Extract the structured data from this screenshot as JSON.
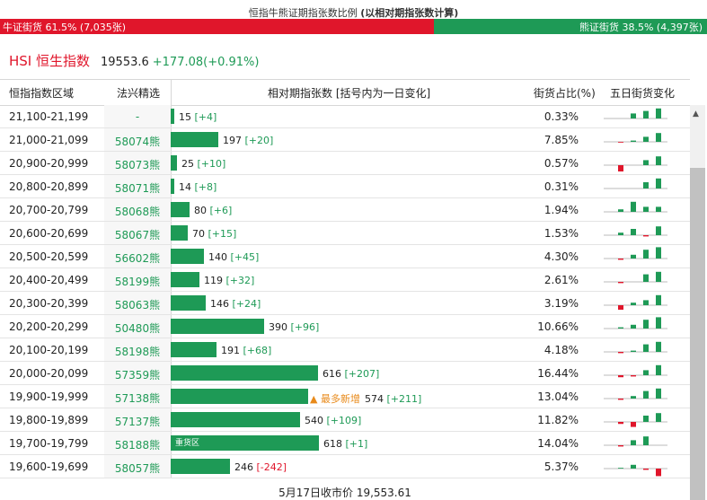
{
  "header": {
    "title_main": "恒指牛熊证期指张数比例",
    "title_note": "(以相对期指张数计算)"
  },
  "ratio": {
    "bull_label": "牛证街货 61.5% (7,035张)",
    "bear_label": "熊证街货 38.5% (4,397张)",
    "bull_share": 0.615,
    "bull_color": "#e0162b",
    "bear_color": "#1e9a56"
  },
  "index": {
    "name": "HSI 恒生指数",
    "price": "19553.6",
    "change": "+177.08(+0.91%)"
  },
  "table": {
    "headers": {
      "range": "恒指指数区域",
      "pick": "法兴精选",
      "count": "相对期指张数 [括号内为一日变化]",
      "share": "街货占比(%)",
      "trend": "五日街货变化"
    },
    "max_count": 618,
    "rows": [
      {
        "range": "21,100-21,199",
        "code": "-",
        "count": "15",
        "delta": "[+4]",
        "delta_dir": "pos",
        "value": 15,
        "share": "0.33%",
        "label": "",
        "trend": [
          0,
          0,
          2,
          3,
          4
        ]
      },
      {
        "range": "21,000-21,099",
        "code": "58074熊",
        "count": "197",
        "delta": "[+20]",
        "delta_dir": "pos",
        "value": 197,
        "share": "7.85%",
        "label": "",
        "trend": [
          0,
          -0.3,
          0.5,
          2,
          3.5
        ]
      },
      {
        "range": "20,900-20,999",
        "code": "58073熊",
        "count": "25",
        "delta": "[+10]",
        "delta_dir": "pos",
        "value": 25,
        "share": "0.57%",
        "label": "",
        "trend": [
          0,
          -2.5,
          0,
          2,
          3.5
        ]
      },
      {
        "range": "20,800-20,899",
        "code": "58071熊",
        "count": "14",
        "delta": "[+8]",
        "delta_dir": "pos",
        "value": 14,
        "share": "0.31%",
        "label": "",
        "trend": [
          0,
          0,
          0,
          2.5,
          4
        ]
      },
      {
        "range": "20,700-20,799",
        "code": "58068熊",
        "count": "80",
        "delta": "[+6]",
        "delta_dir": "pos",
        "value": 80,
        "share": "1.94%",
        "label": "",
        "trend": [
          0,
          1,
          4,
          2,
          2
        ]
      },
      {
        "range": "20,600-20,699",
        "code": "58067熊",
        "count": "70",
        "delta": "[+15]",
        "delta_dir": "pos",
        "value": 70,
        "share": "1.53%",
        "label": "",
        "trend": [
          0,
          1,
          2.5,
          -0.5,
          3.5
        ]
      },
      {
        "range": "20,500-20,599",
        "code": "56602熊",
        "count": "140",
        "delta": "[+45]",
        "delta_dir": "pos",
        "value": 140,
        "share": "4.30%",
        "label": "",
        "trend": [
          0,
          -0.5,
          1.5,
          3.5,
          4.5
        ]
      },
      {
        "range": "20,400-20,499",
        "code": "58199熊",
        "count": "119",
        "delta": "[+32]",
        "delta_dir": "pos",
        "value": 119,
        "share": "2.61%",
        "label": "",
        "trend": [
          0,
          -0.5,
          0,
          3,
          4
        ]
      },
      {
        "range": "20,300-20,399",
        "code": "58063熊",
        "count": "146",
        "delta": "[+24]",
        "delta_dir": "pos",
        "value": 146,
        "share": "3.19%",
        "label": "",
        "trend": [
          0,
          -1.8,
          1,
          2,
          4
        ]
      },
      {
        "range": "20,200-20,299",
        "code": "50480熊",
        "count": "390",
        "delta": "[+96]",
        "delta_dir": "pos",
        "value": 390,
        "share": "10.66%",
        "label": "",
        "trend": [
          0,
          0.5,
          1.5,
          3.5,
          4.5
        ]
      },
      {
        "range": "20,100-20,199",
        "code": "58198熊",
        "count": "191",
        "delta": "[+68]",
        "delta_dir": "pos",
        "value": 191,
        "share": "4.18%",
        "label": "",
        "trend": [
          0,
          -0.5,
          0.5,
          3,
          4
        ]
      },
      {
        "range": "20,000-20,099",
        "code": "57359熊",
        "count": "616",
        "delta": "[+207]",
        "delta_dir": "pos",
        "value": 616,
        "share": "16.44%",
        "label": "",
        "trend": [
          0,
          -0.8,
          -0.5,
          2,
          4
        ]
      },
      {
        "range": "19,900-19,999",
        "code": "57138熊",
        "count": "574",
        "delta": "[+211]",
        "delta_dir": "pos",
        "value": 574,
        "share": "13.04%",
        "label": "▲ 最多新增",
        "trend": [
          0,
          -0.5,
          1,
          3,
          4
        ]
      },
      {
        "range": "19,800-19,899",
        "code": "57137熊",
        "count": "540",
        "delta": "[+109]",
        "delta_dir": "pos",
        "value": 540,
        "share": "11.82%",
        "label": "",
        "trend": [
          0,
          -0.8,
          -2,
          2.5,
          3.5
        ]
      },
      {
        "range": "19,700-19,799",
        "code": "58188熊",
        "count": "618",
        "delta": "[+1]",
        "delta_dir": "pos",
        "value": 618,
        "share": "14.04%",
        "label": "重货区",
        "trend": [
          0,
          -0.5,
          2,
          3.5,
          0
        ]
      },
      {
        "range": "19,600-19,699",
        "code": "58057熊",
        "count": "246",
        "delta": "[-242]",
        "delta_dir": "neg",
        "value": 246,
        "share": "5.37%",
        "label": "",
        "trend": [
          0,
          0.3,
          1.5,
          -0.5,
          -3
        ]
      }
    ]
  },
  "footer": {
    "close_text": "5月17日收市价 19,553.61"
  },
  "colors": {
    "green": "#1e9a56",
    "red": "#e0162b",
    "orange": "#e88a1a"
  }
}
